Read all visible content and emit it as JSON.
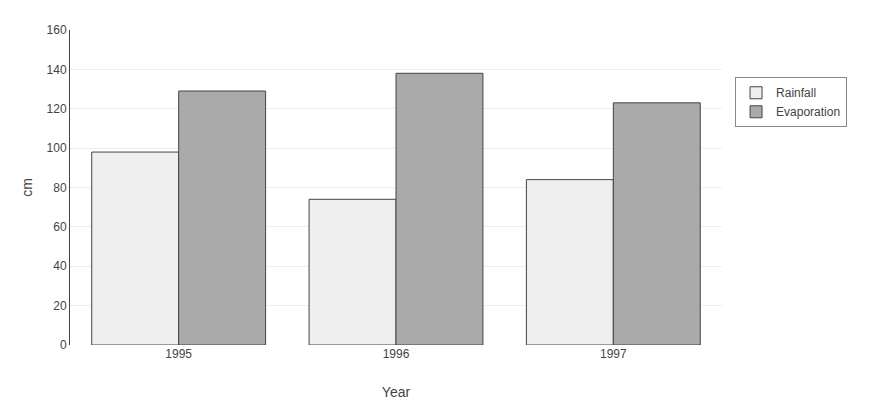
{
  "chart_data": {
    "type": "bar",
    "categories": [
      "1995",
      "1996",
      "1997"
    ],
    "series": [
      {
        "name": "Rainfall",
        "color": "#efefef",
        "values": [
          98,
          74,
          84
        ]
      },
      {
        "name": "Evaporation",
        "color": "#aaaaaa",
        "values": [
          129,
          138,
          123
        ]
      }
    ],
    "xlabel": "Year",
    "ylabel": "cm",
    "ylim": [
      0,
      160
    ],
    "yticks": [
      0,
      20,
      40,
      60,
      80,
      100,
      120,
      140,
      160
    ],
    "grid": true,
    "legend": "right"
  }
}
